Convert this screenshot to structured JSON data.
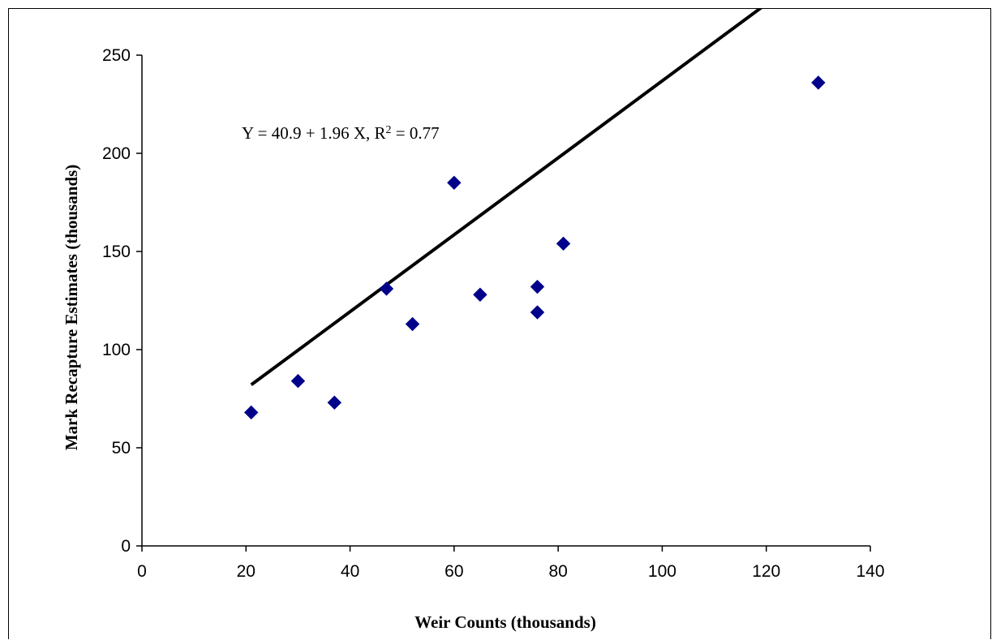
{
  "chart_data": {
    "type": "scatter",
    "xlabel": "Weir Counts (thousands)",
    "ylabel": "Mark Recapture Estimates (thousands)",
    "xlim": [
      0,
      140
    ],
    "ylim": [
      0,
      250
    ],
    "x_ticks": [
      0,
      20,
      40,
      60,
      80,
      100,
      120,
      140
    ],
    "y_ticks": [
      0,
      50,
      100,
      150,
      200,
      250
    ],
    "grid": false,
    "legend": "none",
    "marker_color": "#00008B",
    "line_color": "#000000",
    "points": [
      {
        "x": 21,
        "y": 68
      },
      {
        "x": 30,
        "y": 84
      },
      {
        "x": 37,
        "y": 73
      },
      {
        "x": 47,
        "y": 131
      },
      {
        "x": 52,
        "y": 113
      },
      {
        "x": 60,
        "y": 185
      },
      {
        "x": 65,
        "y": 128
      },
      {
        "x": 76,
        "y": 132
      },
      {
        "x": 76,
        "y": 119
      },
      {
        "x": 81,
        "y": 154
      },
      {
        "x": 130,
        "y": 236
      }
    ],
    "regression": {
      "intercept": 40.9,
      "slope": 1.96,
      "x_range": [
        21,
        130
      ],
      "equation_text": "Y = 40.9 + 1.96 X,  R",
      "r2_superscript": "2",
      "r2_text": " = 0.77"
    }
  }
}
